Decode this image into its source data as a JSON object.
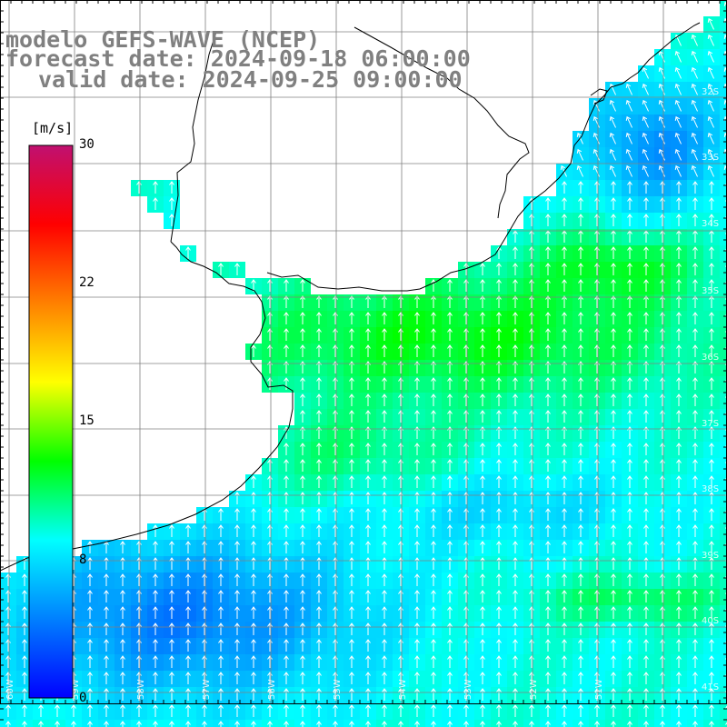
{
  "title": {
    "model": "modelo GEFS-WAVE (NCEP)",
    "forecast": "forecast date: 2024-09-18 06:00:00",
    "valid": "valid date: 2024-09-25 09:00:00"
  },
  "colorbar": {
    "unit": "[m/s]",
    "min": 0,
    "max": 30,
    "ticks": [
      "30",
      "22",
      "15",
      "8",
      "0"
    ],
    "colors": [
      "#0000ff",
      "#0080ff",
      "#00ffff",
      "#00ff00",
      "#ffff00",
      "#ff8000",
      "#ff0000",
      "#c01070"
    ]
  },
  "map": {
    "grid_lat_labels": [
      "32S",
      "33S",
      "34S",
      "35S",
      "36S",
      "37S",
      "38S",
      "39S",
      "40S",
      "41S"
    ],
    "grid_lon_labels": [
      "60W",
      "59W",
      "58W",
      "57W",
      "56W",
      "55W",
      "54W",
      "53W",
      "52W",
      "51W"
    ],
    "colors": {
      "land": "#ffffff",
      "coast": "#000000",
      "grid": "#808080",
      "arrow": "#ffffff"
    }
  }
}
